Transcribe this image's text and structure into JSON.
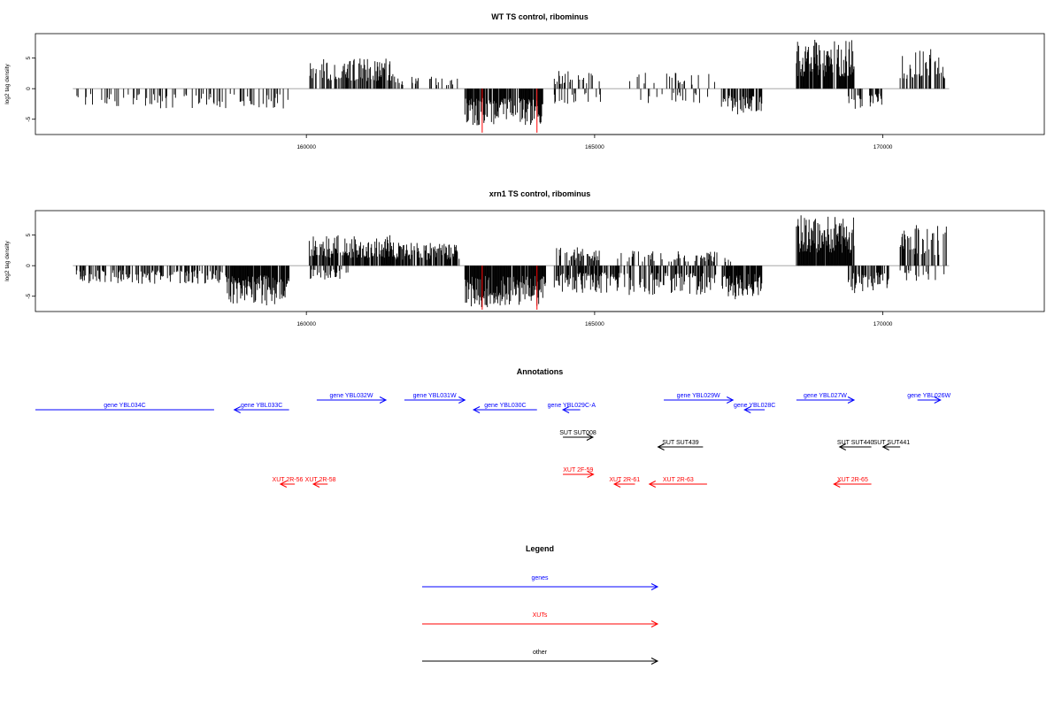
{
  "colors": {
    "gene": "#0000ff",
    "xut": "#ff0000",
    "other": "#000000",
    "bar": "#000000",
    "highlight": "#ff0000",
    "baseline": "#9a9a9a"
  },
  "chart_data": [
    {
      "type": "bar",
      "title": "WT TS control, ribominus",
      "ylabel": "log2 tag density",
      "xlim": [
        155300,
        172800
      ],
      "ylim": [
        -7.5,
        9
      ],
      "xticks": [
        160000,
        165000,
        170000
      ],
      "yticks": [
        -5,
        0,
        5
      ],
      "segments": [
        {
          "x0": 156000,
          "x1": 159700,
          "dir": -1,
          "max": 3.3,
          "density": 0.22,
          "seed": 11
        },
        {
          "x0": 160050,
          "x1": 161500,
          "dir": 1,
          "max": 5.0,
          "density": 0.55,
          "seed": 12
        },
        {
          "x0": 161500,
          "x1": 162650,
          "dir": 1,
          "max": 2.2,
          "density": 0.18,
          "seed": 13
        },
        {
          "x0": 162750,
          "x1": 164100,
          "dir": -1,
          "max": 6.0,
          "density": 0.85,
          "seed": 14
        },
        {
          "x0": 164300,
          "x1": 165100,
          "dir": 1,
          "max": 3.0,
          "density": 0.25,
          "seed": 15
        },
        {
          "x0": 164300,
          "x1": 165100,
          "dir": -1,
          "max": 2.5,
          "density": 0.2,
          "seed": 16
        },
        {
          "x0": 165600,
          "x1": 167100,
          "dir": 1,
          "max": 2.6,
          "density": 0.12,
          "seed": 17
        },
        {
          "x0": 165600,
          "x1": 167100,
          "dir": -1,
          "max": 2.5,
          "density": 0.12,
          "seed": 18
        },
        {
          "x0": 167200,
          "x1": 167900,
          "dir": -1,
          "max": 4.3,
          "density": 0.6,
          "seed": 19
        },
        {
          "x0": 168500,
          "x1": 169500,
          "dir": 1,
          "max": 8.0,
          "density": 0.9,
          "seed": 20
        },
        {
          "x0": 169400,
          "x1": 170000,
          "dir": -1,
          "max": 3.3,
          "density": 0.35,
          "seed": 21
        },
        {
          "x0": 170300,
          "x1": 171100,
          "dir": 1,
          "max": 6.5,
          "density": 0.45,
          "seed": 22
        }
      ],
      "highlights": [
        {
          "x": 163050,
          "y": -7.2
        },
        {
          "x": 164000,
          "y": -7.2
        }
      ]
    },
    {
      "type": "bar",
      "title": "xrn1 TS control, ribominus",
      "ylabel": "log2 tag density",
      "xlim": [
        155300,
        172800
      ],
      "ylim": [
        -7.5,
        9
      ],
      "xticks": [
        160000,
        165000,
        170000
      ],
      "yticks": [
        -5,
        0,
        5
      ],
      "segments": [
        {
          "x0": 156000,
          "x1": 158600,
          "dir": -1,
          "max": 3.0,
          "density": 0.45,
          "seed": 31
        },
        {
          "x0": 158600,
          "x1": 159700,
          "dir": -1,
          "max": 6.5,
          "density": 0.9,
          "seed": 32
        },
        {
          "x0": 160050,
          "x1": 161500,
          "dir": 1,
          "max": 5.0,
          "density": 0.8,
          "seed": 33
        },
        {
          "x0": 161500,
          "x1": 162650,
          "dir": 1,
          "max": 3.8,
          "density": 0.7,
          "seed": 34
        },
        {
          "x0": 160050,
          "x1": 160800,
          "dir": -1,
          "max": 2.3,
          "density": 0.3,
          "seed": 35
        },
        {
          "x0": 162750,
          "x1": 164150,
          "dir": -1,
          "max": 6.8,
          "density": 0.95,
          "seed": 36
        },
        {
          "x0": 164300,
          "x1": 165100,
          "dir": 1,
          "max": 3.0,
          "density": 0.45,
          "seed": 37
        },
        {
          "x0": 164300,
          "x1": 165400,
          "dir": -1,
          "max": 4.5,
          "density": 0.7,
          "seed": 38
        },
        {
          "x0": 165400,
          "x1": 167100,
          "dir": -1,
          "max": 4.8,
          "density": 0.6,
          "seed": 39
        },
        {
          "x0": 165400,
          "x1": 167100,
          "dir": 1,
          "max": 2.5,
          "density": 0.2,
          "seed": 40
        },
        {
          "x0": 167200,
          "x1": 167900,
          "dir": -1,
          "max": 5.5,
          "density": 0.8,
          "seed": 41
        },
        {
          "x0": 166700,
          "x1": 167400,
          "dir": 1,
          "max": 2.3,
          "density": 0.2,
          "seed": 42
        },
        {
          "x0": 168500,
          "x1": 169500,
          "dir": 1,
          "max": 8.3,
          "density": 0.95,
          "seed": 43
        },
        {
          "x0": 169400,
          "x1": 170100,
          "dir": -1,
          "max": 4.5,
          "density": 0.6,
          "seed": 44
        },
        {
          "x0": 170300,
          "x1": 171100,
          "dir": 1,
          "max": 7.0,
          "density": 0.55,
          "seed": 45
        },
        {
          "x0": 170300,
          "x1": 171100,
          "dir": -1,
          "max": 2.5,
          "density": 0.2,
          "seed": 46
        }
      ],
      "highlights": [
        {
          "x": 163050,
          "y": -7.2
        },
        {
          "x": 164000,
          "y": -7.2
        }
      ]
    }
  ],
  "annotations": {
    "title": "Annotations",
    "xlim": [
      155300,
      172800
    ],
    "features": [
      {
        "label": "gene YBL034C",
        "kind": "gene",
        "x0": 155300,
        "x1": 158400,
        "strand": "none",
        "row": 0
      },
      {
        "label": "gene YBL033C",
        "kind": "gene",
        "x0": 158750,
        "x1": 159700,
        "strand": "-",
        "row": 0
      },
      {
        "label": "gene YBL032W",
        "kind": "gene",
        "x0": 160180,
        "x1": 161380,
        "strand": "+",
        "row": 1
      },
      {
        "label": "gene YBL031W",
        "kind": "gene",
        "x0": 161700,
        "x1": 162750,
        "strand": "+",
        "row": 1
      },
      {
        "label": "gene YBL030C",
        "kind": "gene",
        "x0": 162900,
        "x1": 164000,
        "strand": "-",
        "row": 0
      },
      {
        "label": "gene YBL029C-A",
        "kind": "gene",
        "x0": 164450,
        "x1": 164750,
        "strand": "-",
        "row": 0
      },
      {
        "label": "gene YBL029W",
        "kind": "gene",
        "x0": 166200,
        "x1": 167400,
        "strand": "+",
        "row": 1
      },
      {
        "label": "gene YBL028C",
        "kind": "gene",
        "x0": 167600,
        "x1": 167950,
        "strand": "-",
        "row": 0
      },
      {
        "label": "gene YBL027W",
        "kind": "gene",
        "x0": 168500,
        "x1": 169500,
        "strand": "+",
        "row": 1
      },
      {
        "label": "gene YBL026W",
        "kind": "gene",
        "x0": 170600,
        "x1": 171000,
        "strand": "+",
        "row": 1
      },
      {
        "label": "SUT SUT008",
        "kind": "other",
        "x0": 164450,
        "x1": 164970,
        "strand": "+",
        "row": 2
      },
      {
        "label": "SUT SUT439",
        "kind": "other",
        "x0": 166100,
        "x1": 166880,
        "strand": "-",
        "row": 3
      },
      {
        "label": "SUT SUT440",
        "kind": "other",
        "x0": 169250,
        "x1": 169800,
        "strand": "-",
        "row": 3
      },
      {
        "label": "SUT SUT441",
        "kind": "other",
        "x0": 170000,
        "x1": 170300,
        "strand": "-",
        "row": 3
      },
      {
        "label": "XUT 2R-56",
        "kind": "xut",
        "x0": 159550,
        "x1": 159800,
        "strand": "-",
        "row": 5
      },
      {
        "label": "XUT 2R-58",
        "kind": "xut",
        "x0": 160120,
        "x1": 160370,
        "strand": "-",
        "row": 5
      },
      {
        "label": "XUT 2F-59",
        "kind": "xut",
        "x0": 164450,
        "x1": 164980,
        "strand": "+",
        "row": 4
      },
      {
        "label": "XUT 2R-61",
        "kind": "xut",
        "x0": 165340,
        "x1": 165700,
        "strand": "-",
        "row": 5
      },
      {
        "label": "XUT 2R-63",
        "kind": "xut",
        "x0": 165950,
        "x1": 166950,
        "strand": "-",
        "row": 5
      },
      {
        "label": "XUT 2R-65",
        "kind": "xut",
        "x0": 169150,
        "x1": 169800,
        "strand": "-",
        "row": 5
      }
    ]
  },
  "legend": {
    "title": "Legend",
    "items": [
      {
        "label": "genes",
        "kind": "gene"
      },
      {
        "label": "XUTs",
        "kind": "xut"
      },
      {
        "label": "other",
        "kind": "other"
      }
    ]
  }
}
